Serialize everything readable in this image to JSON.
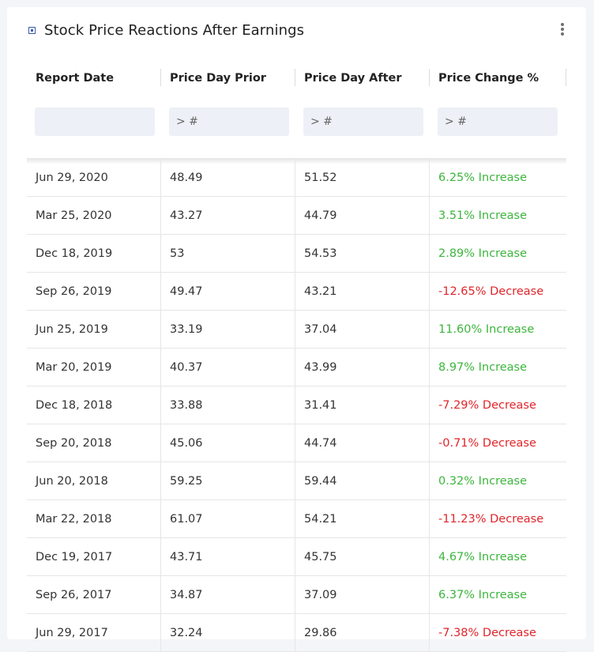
{
  "title": "Stock Price Reactions After Earnings",
  "colors": {
    "increase": "#3db53d",
    "decrease": "#e0252b"
  },
  "columns": [
    "Report Date",
    "Price Day Prior",
    "Price Day After",
    "Price Change %"
  ],
  "filters": [
    {
      "placeholder": ""
    },
    {
      "placeholder": "> #"
    },
    {
      "placeholder": "> #"
    },
    {
      "placeholder": "> #"
    }
  ],
  "rows": [
    {
      "date": "Jun 29, 2020",
      "prior": "48.49",
      "after": "51.52",
      "change": "6.25% Increase",
      "direction": "increase"
    },
    {
      "date": "Mar 25, 2020",
      "prior": "43.27",
      "after": "44.79",
      "change": "3.51% Increase",
      "direction": "increase"
    },
    {
      "date": "Dec 18, 2019",
      "prior": "53",
      "after": "54.53",
      "change": "2.89% Increase",
      "direction": "increase"
    },
    {
      "date": "Sep 26, 2019",
      "prior": "49.47",
      "after": "43.21",
      "change": "-12.65% Decrease",
      "direction": "decrease"
    },
    {
      "date": "Jun 25, 2019",
      "prior": "33.19",
      "after": "37.04",
      "change": "11.60% Increase",
      "direction": "increase"
    },
    {
      "date": "Mar 20, 2019",
      "prior": "40.37",
      "after": "43.99",
      "change": "8.97% Increase",
      "direction": "increase"
    },
    {
      "date": "Dec 18, 2018",
      "prior": "33.88",
      "after": "31.41",
      "change": "-7.29% Decrease",
      "direction": "decrease"
    },
    {
      "date": "Sep 20, 2018",
      "prior": "45.06",
      "after": "44.74",
      "change": "-0.71% Decrease",
      "direction": "decrease"
    },
    {
      "date": "Jun 20, 2018",
      "prior": "59.25",
      "after": "59.44",
      "change": "0.32% Increase",
      "direction": "increase"
    },
    {
      "date": "Mar 22, 2018",
      "prior": "61.07",
      "after": "54.21",
      "change": "-11.23% Decrease",
      "direction": "decrease"
    },
    {
      "date": "Dec 19, 2017",
      "prior": "43.71",
      "after": "45.75",
      "change": "4.67% Increase",
      "direction": "increase"
    },
    {
      "date": "Sep 26, 2017",
      "prior": "34.87",
      "after": "37.09",
      "change": "6.37% Increase",
      "direction": "increase"
    },
    {
      "date": "Jun 29, 2017",
      "prior": "32.24",
      "after": "29.86",
      "change": "-7.38% Decrease",
      "direction": "decrease"
    }
  ]
}
